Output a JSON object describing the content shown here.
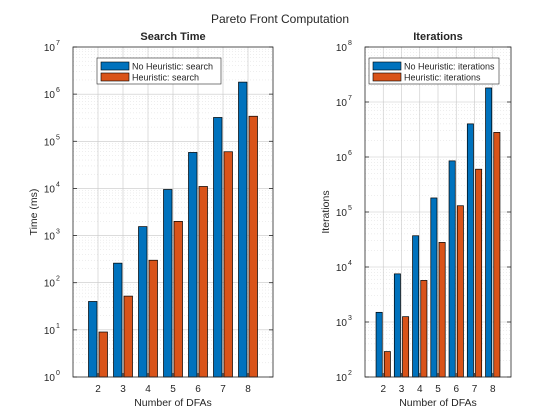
{
  "figure": {
    "title": "Pareto Front Computation"
  },
  "chart_data": [
    {
      "type": "bar",
      "title": "Search Time",
      "xlabel": "Number of DFAs",
      "ylabel": "Time (ms)",
      "yscale": "log",
      "ylim": [
        1,
        10000000
      ],
      "grid": true,
      "legend": "top-left",
      "categories": [
        "2",
        "3",
        "4",
        "5",
        "6",
        "7",
        "8"
      ],
      "series": [
        {
          "name": "No Heuristic: search",
          "color": "#0072BD",
          "values": [
            40,
            260,
            1550,
            9500,
            58000,
            320000,
            1800000
          ]
        },
        {
          "name": "Heuristic: search",
          "color": "#D95319",
          "values": [
            9,
            52,
            300,
            2000,
            11000,
            60000,
            340000
          ]
        }
      ]
    },
    {
      "type": "bar",
      "title": "Iterations",
      "xlabel": "Number of DFAs",
      "ylabel": "Iterations",
      "yscale": "log",
      "ylim": [
        100,
        100000000
      ],
      "grid": true,
      "legend": "top-left",
      "categories": [
        "2",
        "3",
        "4",
        "5",
        "6",
        "7",
        "8"
      ],
      "series": [
        {
          "name": "No Heuristic: iterations",
          "color": "#0072BD",
          "values": [
            1500,
            7500,
            37000,
            180000,
            850000,
            4000000,
            18000000
          ]
        },
        {
          "name": "Heuristic: iterations",
          "color": "#D95319",
          "values": [
            290,
            1250,
            5700,
            28000,
            130000,
            600000,
            2800000
          ]
        }
      ]
    }
  ]
}
